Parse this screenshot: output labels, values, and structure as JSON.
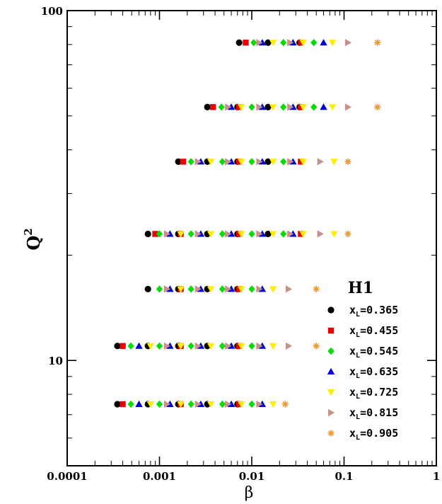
{
  "chart_data": {
    "type": "scatter",
    "title": "",
    "xlabel": "β",
    "ylabel": "Q",
    "ylabel_sup": "2",
    "xscale": "log",
    "yscale": "log",
    "xlim": [
      0.0001,
      1
    ],
    "ylim": [
      5,
      100
    ],
    "grid": false,
    "legend_title": "H1",
    "legend_position": "right",
    "x_ticks": [
      {
        "value": 0.0001,
        "label": "0.0001"
      },
      {
        "value": 0.001,
        "label": "0.001"
      },
      {
        "value": 0.01,
        "label": "0.01"
      },
      {
        "value": 0.1,
        "label": "0.1"
      },
      {
        "value": 1,
        "label": "1"
      }
    ],
    "y_ticks": [
      {
        "value": 10,
        "label": "10"
      },
      {
        "value": 100,
        "label": "100"
      }
    ],
    "q2_values": [
      7.5,
      11,
      16,
      23,
      37,
      53,
      81
    ],
    "series": [
      {
        "name": "x",
        "name_sub": "L",
        "name_rest": "=0.365",
        "color": "#000000",
        "marker": "circle",
        "points": [
          [
            0.00035,
            7.5
          ],
          [
            0.00075,
            7.5
          ],
          [
            0.0016,
            7.5
          ],
          [
            0.0033,
            7.5
          ],
          [
            0.007,
            7.5
          ],
          [
            0.00035,
            11
          ],
          [
            0.00075,
            11
          ],
          [
            0.0016,
            11
          ],
          [
            0.0033,
            11
          ],
          [
            0.007,
            11
          ],
          [
            0.00075,
            16
          ],
          [
            0.0016,
            16
          ],
          [
            0.0033,
            16
          ],
          [
            0.007,
            16
          ],
          [
            0.00075,
            23
          ],
          [
            0.0016,
            23
          ],
          [
            0.0033,
            23
          ],
          [
            0.007,
            23
          ],
          [
            0.015,
            23
          ],
          [
            0.0016,
            37
          ],
          [
            0.0033,
            37
          ],
          [
            0.007,
            37
          ],
          [
            0.015,
            37
          ],
          [
            0.0033,
            53
          ],
          [
            0.007,
            53
          ],
          [
            0.015,
            53
          ],
          [
            0.033,
            53
          ],
          [
            0.0073,
            81
          ],
          [
            0.015,
            81
          ],
          [
            0.033,
            81
          ]
        ]
      },
      {
        "name": "x",
        "name_sub": "L",
        "name_rest": "=0.455",
        "color": "#ee0000",
        "marker": "square",
        "points": [
          [
            0.0004,
            7.5
          ],
          [
            0.0017,
            7.5
          ],
          [
            0.0073,
            7.5
          ],
          [
            0.0004,
            11
          ],
          [
            0.0017,
            11
          ],
          [
            0.0073,
            11
          ],
          [
            0.0017,
            16
          ],
          [
            0.0073,
            16
          ],
          [
            0.0009,
            23
          ],
          [
            0.0017,
            23
          ],
          [
            0.0073,
            23
          ],
          [
            0.034,
            23
          ],
          [
            0.0018,
            37
          ],
          [
            0.0073,
            37
          ],
          [
            0.034,
            37
          ],
          [
            0.0038,
            53
          ],
          [
            0.0073,
            53
          ],
          [
            0.034,
            53
          ],
          [
            0.0086,
            81
          ],
          [
            0.034,
            81
          ]
        ]
      },
      {
        "name": "x",
        "name_sub": "L",
        "name_rest": "=0.545",
        "color": "#00dd00",
        "marker": "diamond",
        "points": [
          [
            0.00049,
            7.5
          ],
          [
            0.001,
            7.5
          ],
          [
            0.0022,
            7.5
          ],
          [
            0.0048,
            7.5
          ],
          [
            0.01,
            7.5
          ],
          [
            0.00049,
            11
          ],
          [
            0.001,
            11
          ],
          [
            0.0022,
            11
          ],
          [
            0.0048,
            11
          ],
          [
            0.01,
            11
          ],
          [
            0.001,
            16
          ],
          [
            0.0022,
            16
          ],
          [
            0.0048,
            16
          ],
          [
            0.01,
            16
          ],
          [
            0.001,
            23
          ],
          [
            0.0022,
            23
          ],
          [
            0.0048,
            23
          ],
          [
            0.01,
            23
          ],
          [
            0.022,
            23
          ],
          [
            0.0022,
            37
          ],
          [
            0.0048,
            37
          ],
          [
            0.01,
            37
          ],
          [
            0.022,
            37
          ],
          [
            0.0047,
            53
          ],
          [
            0.01,
            53
          ],
          [
            0.022,
            53
          ],
          [
            0.047,
            53
          ],
          [
            0.0105,
            81
          ],
          [
            0.022,
            81
          ],
          [
            0.047,
            81
          ]
        ]
      },
      {
        "name": "x",
        "name_sub": "L",
        "name_rest": "=0.635",
        "color": "#0000dd",
        "marker": "triangle-up",
        "points": [
          [
            0.0006,
            7.5
          ],
          [
            0.0013,
            7.5
          ],
          [
            0.0028,
            7.5
          ],
          [
            0.006,
            7.5
          ],
          [
            0.013,
            7.5
          ],
          [
            0.0006,
            11
          ],
          [
            0.0013,
            11
          ],
          [
            0.0028,
            11
          ],
          [
            0.006,
            11
          ],
          [
            0.013,
            11
          ],
          [
            0.0013,
            16
          ],
          [
            0.0028,
            16
          ],
          [
            0.006,
            16
          ],
          [
            0.013,
            16
          ],
          [
            0.0013,
            23
          ],
          [
            0.0028,
            23
          ],
          [
            0.006,
            23
          ],
          [
            0.013,
            23
          ],
          [
            0.028,
            23
          ],
          [
            0.0028,
            37
          ],
          [
            0.006,
            37
          ],
          [
            0.013,
            37
          ],
          [
            0.028,
            37
          ],
          [
            0.006,
            53
          ],
          [
            0.013,
            53
          ],
          [
            0.028,
            53
          ],
          [
            0.06,
            53
          ],
          [
            0.013,
            81
          ],
          [
            0.028,
            81
          ],
          [
            0.06,
            81
          ]
        ]
      },
      {
        "name": "x",
        "name_sub": "L",
        "name_rest": "=0.725",
        "color": "#ffee00",
        "marker": "triangle-down",
        "points": [
          [
            0.0008,
            7.5
          ],
          [
            0.0017,
            7.5
          ],
          [
            0.0036,
            7.5
          ],
          [
            0.0077,
            7.5
          ],
          [
            0.017,
            7.5
          ],
          [
            0.0008,
            11
          ],
          [
            0.0017,
            11
          ],
          [
            0.0036,
            11
          ],
          [
            0.0077,
            11
          ],
          [
            0.017,
            11
          ],
          [
            0.0017,
            16
          ],
          [
            0.0036,
            16
          ],
          [
            0.0077,
            16
          ],
          [
            0.017,
            16
          ],
          [
            0.0017,
            23
          ],
          [
            0.0036,
            23
          ],
          [
            0.0077,
            23
          ],
          [
            0.017,
            23
          ],
          [
            0.036,
            23
          ],
          [
            0.078,
            23
          ],
          [
            0.0036,
            37
          ],
          [
            0.0077,
            37
          ],
          [
            0.017,
            37
          ],
          [
            0.036,
            37
          ],
          [
            0.078,
            37
          ],
          [
            0.0077,
            53
          ],
          [
            0.017,
            53
          ],
          [
            0.036,
            53
          ],
          [
            0.075,
            53
          ],
          [
            0.017,
            81
          ],
          [
            0.036,
            81
          ],
          [
            0.075,
            81
          ]
        ]
      },
      {
        "name": "x",
        "name_sub": "L",
        "name_rest": "=0.815",
        "color": "#c8908a",
        "marker": "triangle-right",
        "points": [
          [
            0.0012,
            7.5
          ],
          [
            0.0026,
            7.5
          ],
          [
            0.0055,
            7.5
          ],
          [
            0.012,
            7.5
          ],
          [
            0.0012,
            11
          ],
          [
            0.0026,
            11
          ],
          [
            0.0055,
            11
          ],
          [
            0.012,
            11
          ],
          [
            0.025,
            11
          ],
          [
            0.0012,
            16
          ],
          [
            0.0026,
            16
          ],
          [
            0.0055,
            16
          ],
          [
            0.012,
            16
          ],
          [
            0.025,
            16
          ],
          [
            0.0012,
            23
          ],
          [
            0.0026,
            23
          ],
          [
            0.0055,
            23
          ],
          [
            0.012,
            23
          ],
          [
            0.026,
            23
          ],
          [
            0.055,
            23
          ],
          [
            0.0026,
            37
          ],
          [
            0.0055,
            37
          ],
          [
            0.012,
            37
          ],
          [
            0.026,
            37
          ],
          [
            0.055,
            37
          ],
          [
            0.0055,
            53
          ],
          [
            0.012,
            53
          ],
          [
            0.026,
            53
          ],
          [
            0.11,
            53
          ],
          [
            0.012,
            81
          ],
          [
            0.026,
            81
          ],
          [
            0.11,
            81
          ]
        ]
      },
      {
        "name": "x",
        "name_sub": "L",
        "name_rest": "=0.905",
        "color": "#ee9933",
        "marker": "asterisk",
        "points": [
          [
            0.023,
            7.5
          ],
          [
            0.05,
            11
          ],
          [
            0.05,
            16
          ],
          [
            0.11,
            23
          ],
          [
            0.11,
            37
          ],
          [
            0.23,
            53
          ],
          [
            0.23,
            81
          ]
        ]
      }
    ]
  }
}
